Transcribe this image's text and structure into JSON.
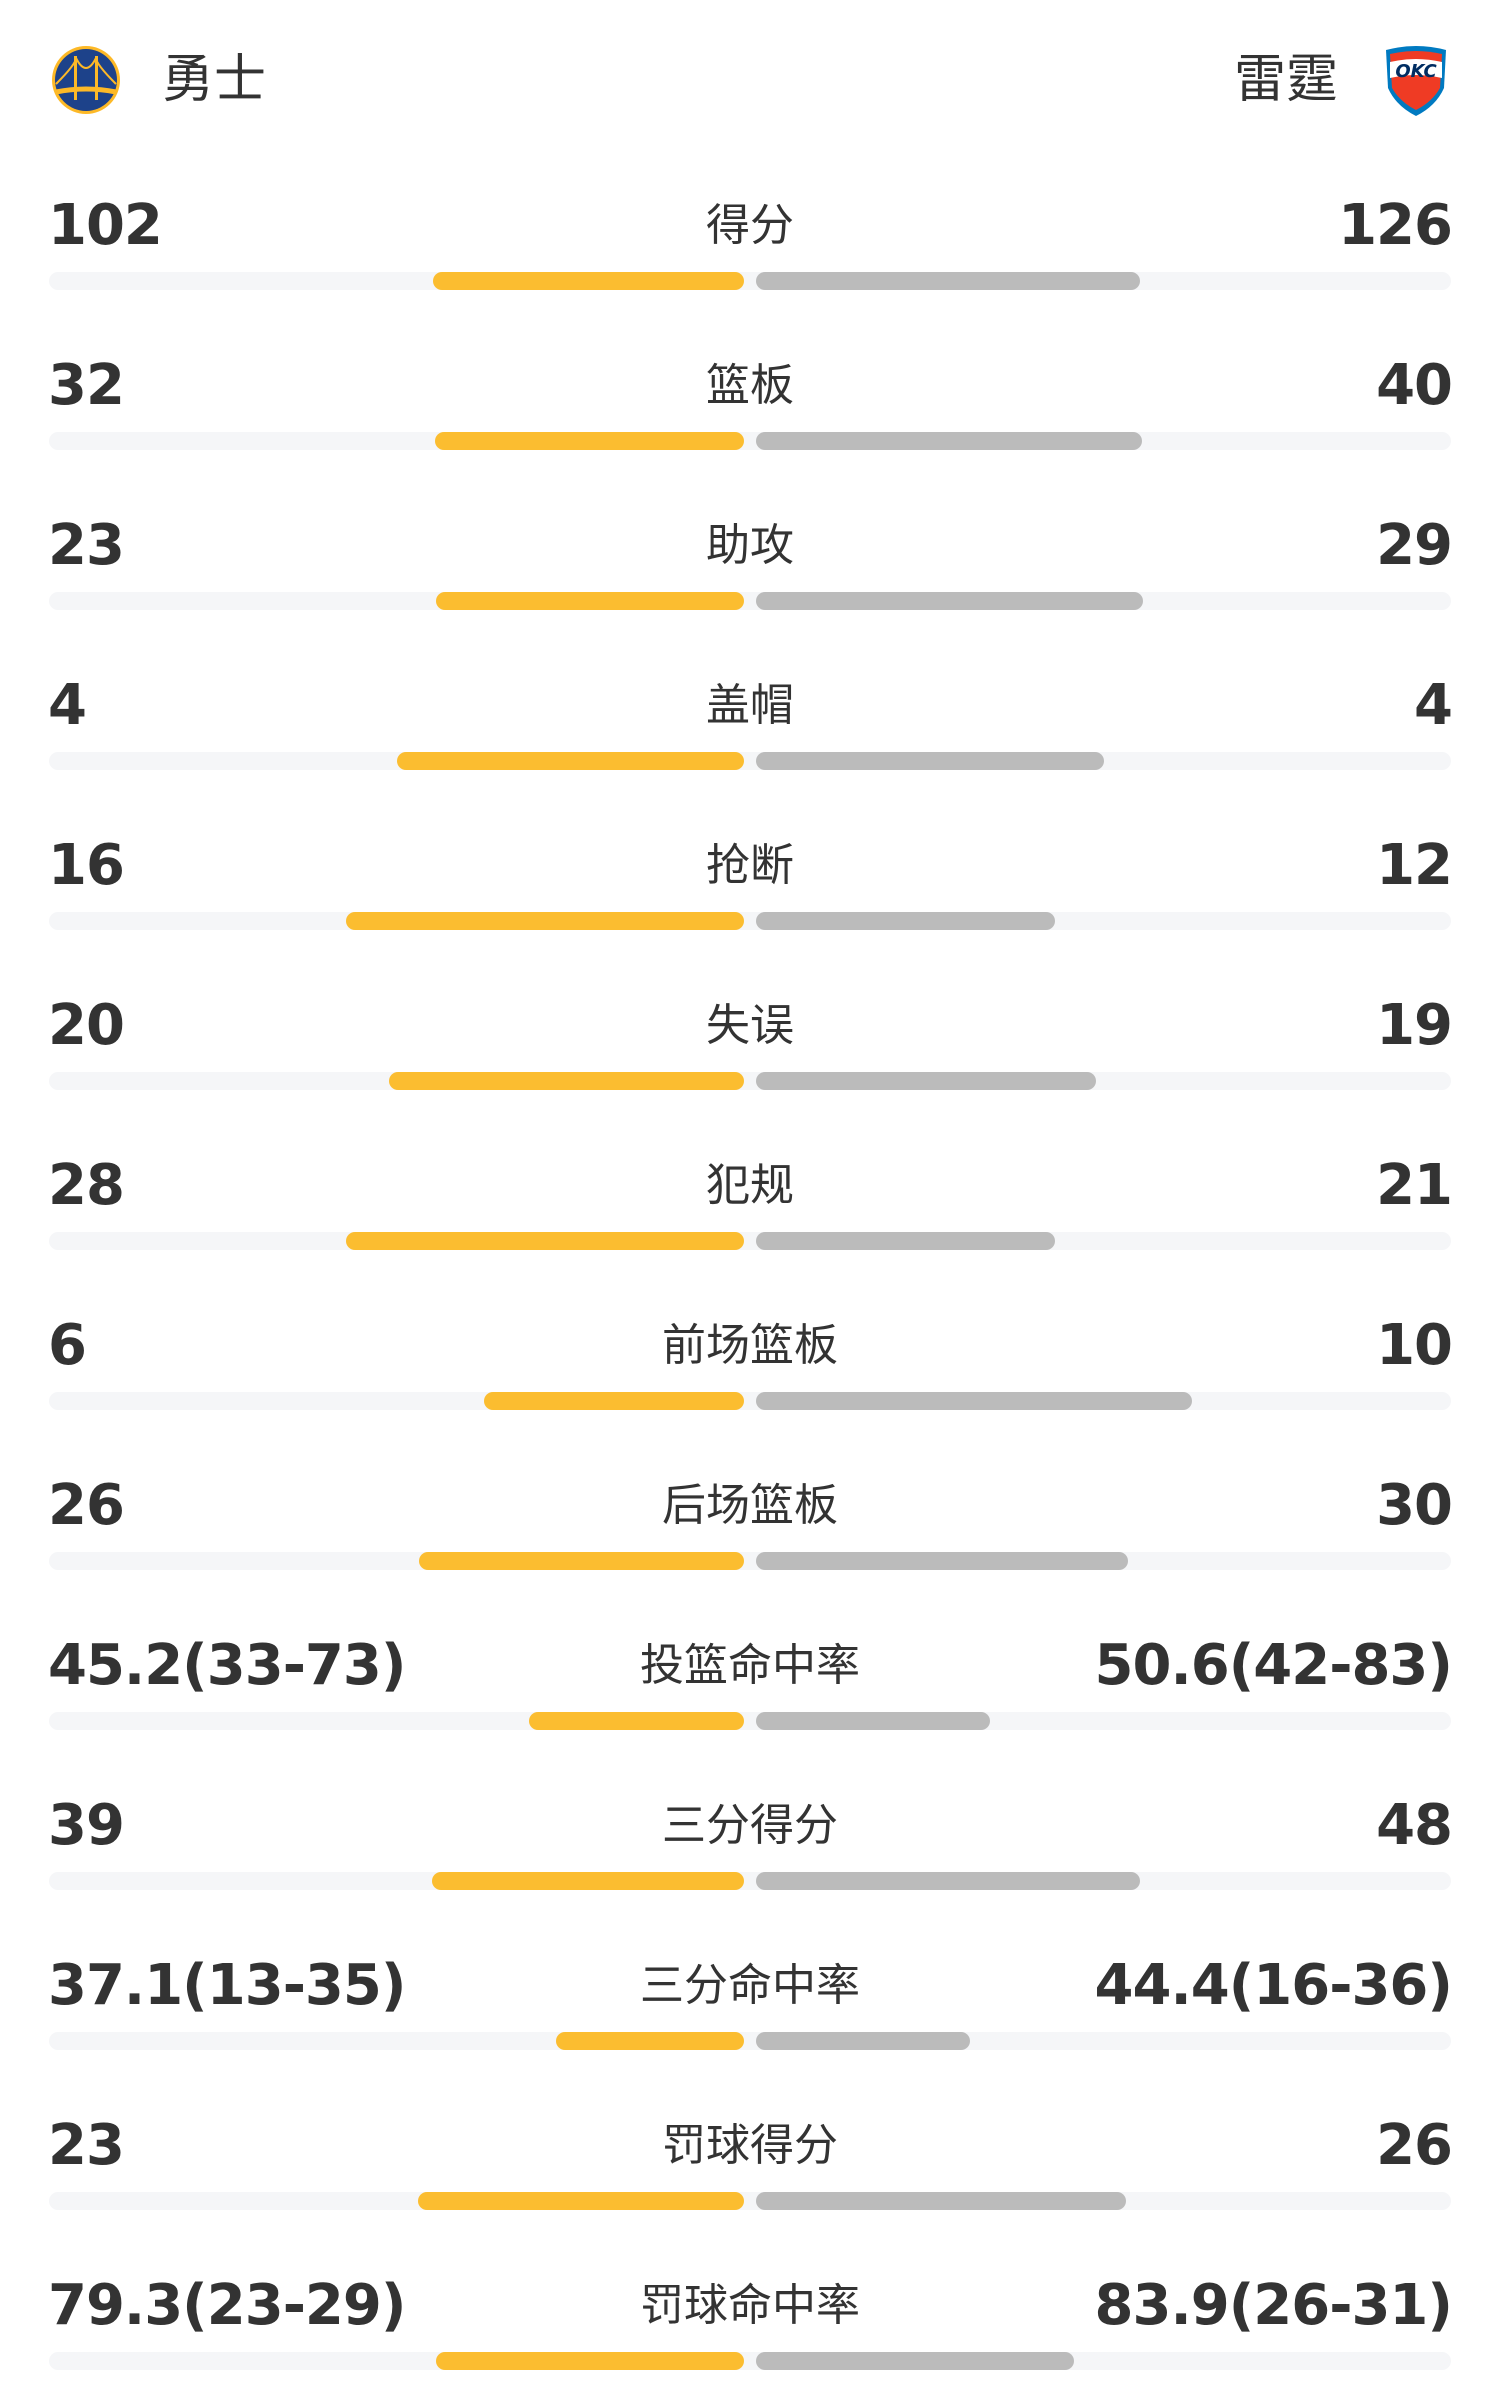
{
  "home_team": {
    "name": "勇士",
    "logo": "warriors-logo",
    "color": "#fbbd30"
  },
  "away_team": {
    "name": "雷霆",
    "logo": "thunder-logo",
    "color": "#bbbbbb"
  },
  "stats": [
    {
      "label": "得分",
      "home": "102",
      "away": "126",
      "home_fill": 0.447,
      "away_fill": 0.553
    },
    {
      "label": "篮板",
      "home": "32",
      "away": "40",
      "home_fill": 0.445,
      "away_fill": 0.555
    },
    {
      "label": "助攻",
      "home": "23",
      "away": "29",
      "home_fill": 0.443,
      "away_fill": 0.557
    },
    {
      "label": "盖帽",
      "home": "4",
      "away": "4",
      "home_fill": 0.5,
      "away_fill": 0.5
    },
    {
      "label": "抢断",
      "home": "16",
      "away": "12",
      "home_fill": 0.573,
      "away_fill": 0.43
    },
    {
      "label": "失误",
      "home": "20",
      "away": "19",
      "home_fill": 0.511,
      "away_fill": 0.489
    },
    {
      "label": "犯规",
      "home": "28",
      "away": "21",
      "home_fill": 0.573,
      "away_fill": 0.43
    },
    {
      "label": "前场篮板",
      "home": "6",
      "away": "10",
      "home_fill": 0.374,
      "away_fill": 0.628
    },
    {
      "label": "后场篮板",
      "home": "26",
      "away": "30",
      "home_fill": 0.467,
      "away_fill": 0.535
    },
    {
      "label": "投篮命中率",
      "home": "45.2(33-73)",
      "away": "50.6(42-83)",
      "home_fill": 0.31,
      "away_fill": 0.337
    },
    {
      "label": "三分得分",
      "home": "39",
      "away": "48",
      "home_fill": 0.449,
      "away_fill": 0.553
    },
    {
      "label": "三分命中率",
      "home": "37.1(13-35)",
      "away": "44.4(16-36)",
      "home_fill": 0.271,
      "away_fill": 0.308
    },
    {
      "label": "罚球得分",
      "home": "23",
      "away": "26",
      "home_fill": 0.469,
      "away_fill": 0.533
    },
    {
      "label": "罚球命中率",
      "home": "79.3(23-29)",
      "away": "83.9(26-31)",
      "home_fill": 0.443,
      "away_fill": 0.458
    }
  ]
}
